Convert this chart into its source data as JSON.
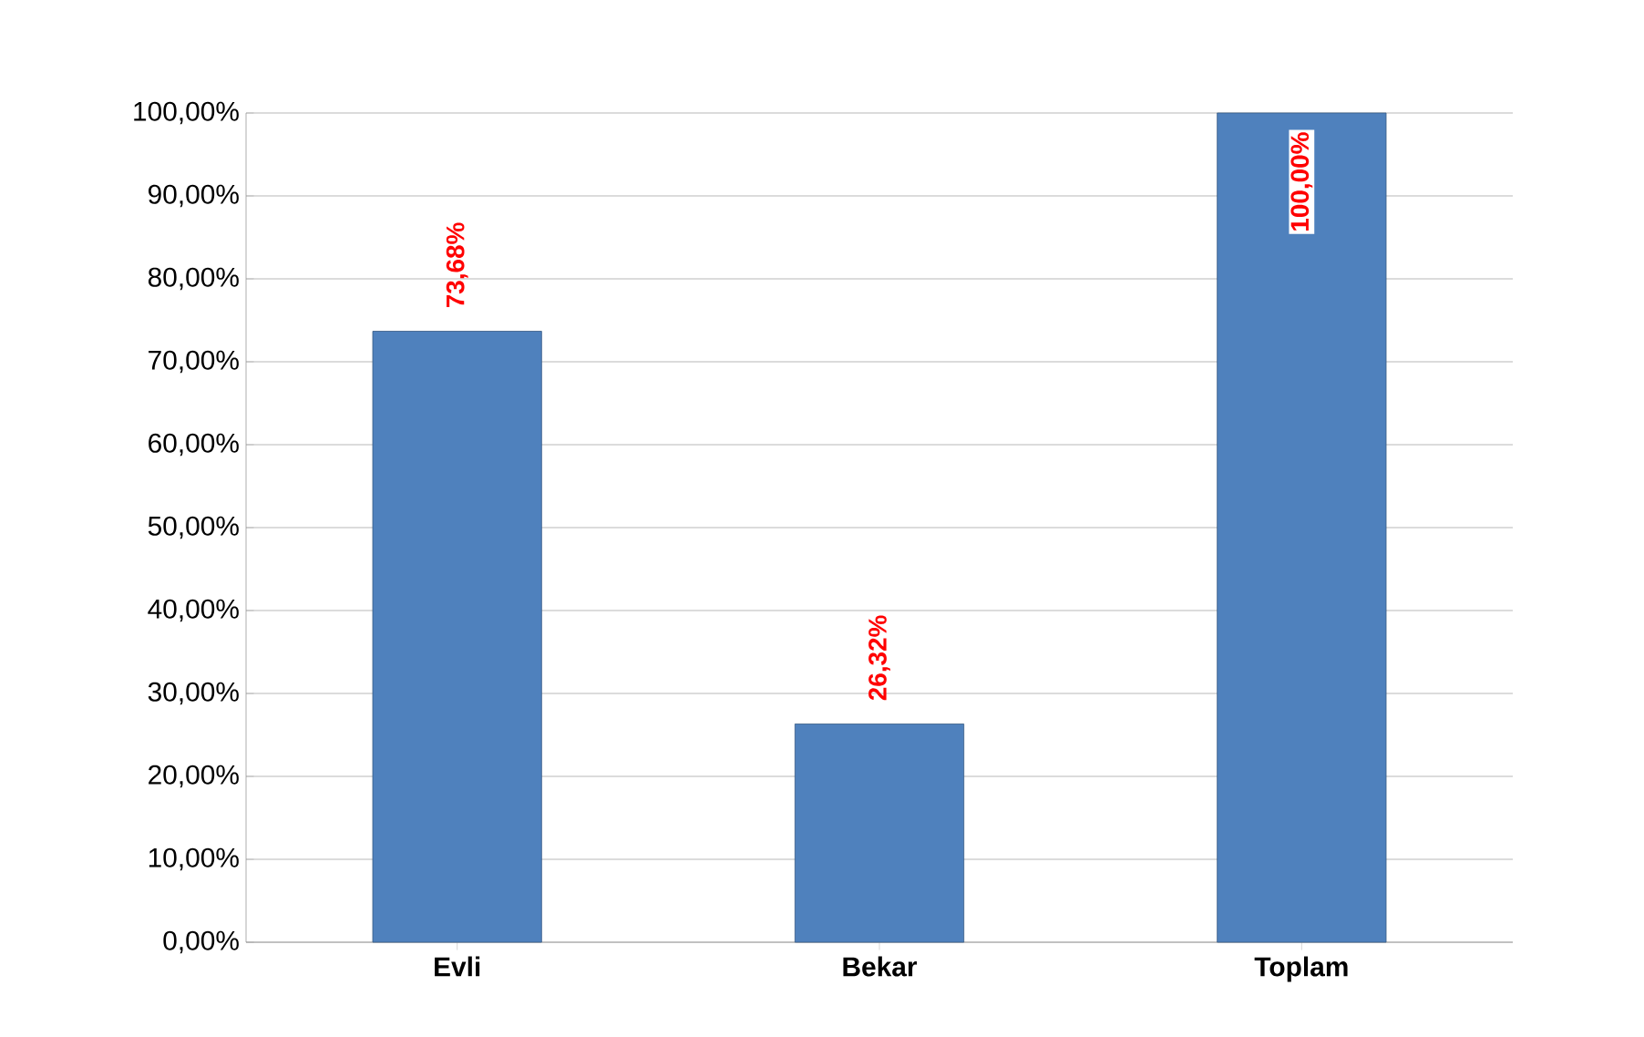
{
  "chart_data": {
    "type": "bar",
    "categories": [
      "Evli",
      "Bekar",
      "Toplam"
    ],
    "values": [
      73.68,
      26.32,
      100
    ],
    "value_labels": [
      "73,68%",
      "26,32%",
      "100,00%"
    ],
    "color": "#4f81bd",
    "ylim": [
      0,
      100
    ],
    "yticks": [
      {
        "value": 0,
        "label": "0,00%"
      },
      {
        "value": 10,
        "label": "10,00%"
      },
      {
        "value": 20,
        "label": "20,00%"
      },
      {
        "value": 30,
        "label": "30,00%"
      },
      {
        "value": 40,
        "label": "40,00%"
      },
      {
        "value": 50,
        "label": "50,00%"
      },
      {
        "value": 60,
        "label": "60,00%"
      },
      {
        "value": 70,
        "label": "70,00%"
      },
      {
        "value": 80,
        "label": "80,00%"
      },
      {
        "value": 90,
        "label": "90,00%"
      },
      {
        "value": 100,
        "label": "100,00%"
      }
    ],
    "grid": "y"
  }
}
